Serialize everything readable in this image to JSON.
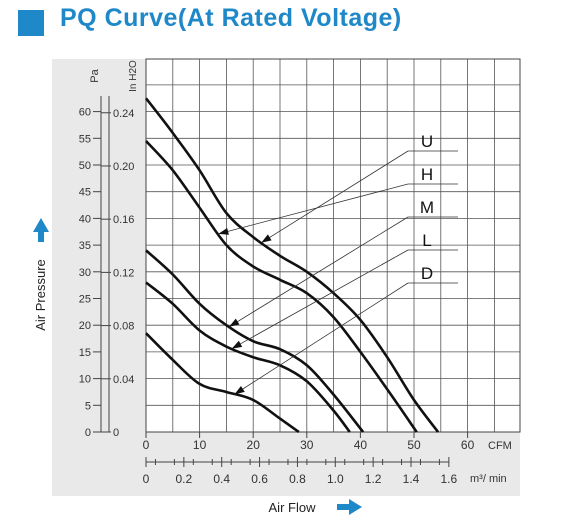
{
  "header": {
    "title": "PQ Curve(At Rated Voltage)",
    "accent_color": "#1E88C8"
  },
  "chart_data": {
    "type": "line",
    "title": "PQ Curve(At Rated Voltage)",
    "xlabel": "Air Flow",
    "ylabel": "Air Pressure",
    "x_primary_unit": "CFM",
    "x_secondary_unit": "m³/ min",
    "y_primary_unit": "Pa",
    "y_secondary_unit": "In H2O",
    "xlim": [
      0,
      70
    ],
    "ylim": [
      0,
      70
    ],
    "x_ticks_cfm": [
      "0",
      "10",
      "20",
      "30",
      "40",
      "50",
      "60"
    ],
    "x_ticks_m3min": [
      "0",
      "0.2",
      "0.4",
      "0.6",
      "0.8",
      "1.0",
      "1.2",
      "1.4",
      "1.6"
    ],
    "y_ticks_pa": [
      "0",
      "5",
      "10",
      "15",
      "20",
      "25",
      "30",
      "35",
      "40",
      "45",
      "50",
      "55",
      "60"
    ],
    "y_ticks_inh2o": [
      "0",
      "0.04",
      "0.08",
      "0.12",
      "0.16",
      "0.20",
      "0.24"
    ],
    "grid": true,
    "legend_labels": [
      "U",
      "H",
      "M",
      "L",
      "D"
    ],
    "series": [
      {
        "name": "U",
        "x": [
          0,
          5,
          10,
          15,
          20,
          25,
          30,
          35,
          40,
          45,
          50,
          54.5
        ],
        "y": [
          62.5,
          56,
          49,
          41,
          36.5,
          33,
          30,
          26,
          21,
          14,
          6,
          0
        ]
      },
      {
        "name": "H",
        "x": [
          0,
          5,
          10,
          15,
          20,
          25,
          30,
          35,
          40,
          45,
          50.5
        ],
        "y": [
          54.5,
          49,
          42,
          35,
          31,
          28.5,
          26,
          21.5,
          15,
          8,
          0
        ]
      },
      {
        "name": "M",
        "x": [
          0,
          5,
          10,
          15,
          20,
          25,
          30,
          35,
          40.5
        ],
        "y": [
          34,
          29.5,
          24,
          20,
          17,
          15.5,
          12.5,
          7,
          0
        ]
      },
      {
        "name": "L",
        "x": [
          0,
          5,
          10,
          15,
          20,
          25,
          30,
          35,
          38
        ],
        "y": [
          28,
          24,
          19,
          16,
          14,
          12.5,
          9.5,
          4,
          0
        ]
      },
      {
        "name": "D",
        "x": [
          0,
          5,
          10,
          15,
          20,
          25,
          28.5
        ],
        "y": [
          18.5,
          13.5,
          9,
          7.5,
          6,
          2.5,
          0
        ]
      }
    ]
  }
}
